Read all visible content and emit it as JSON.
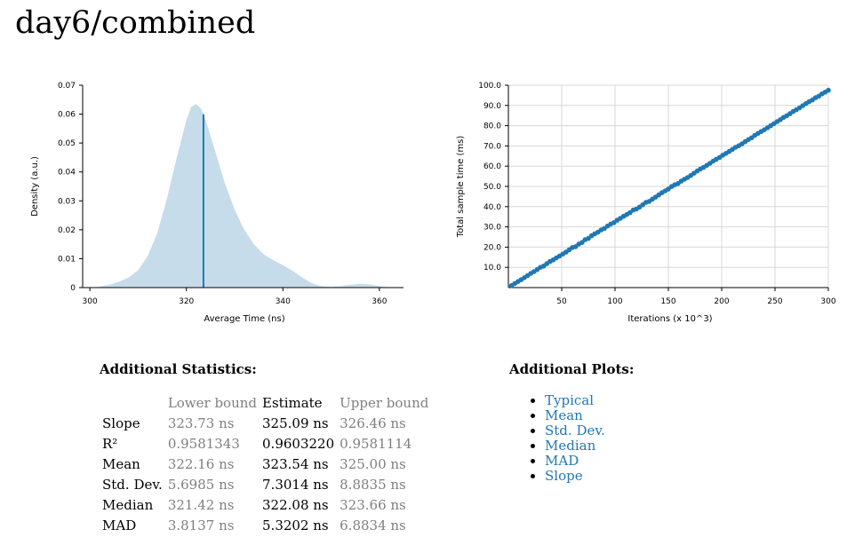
{
  "page": {
    "title": "day6/combined"
  },
  "colors": {
    "link": "#1f78b4",
    "pdf_fill": "#c6dceb",
    "mean_line": "#1f78b4",
    "points": "#1f78b4",
    "muted_text": "#7f7f7f"
  },
  "chart_data": [
    {
      "type": "area",
      "xlabel": "Average Time (ns)",
      "ylabel": "Density (a.u.)",
      "xlim": [
        298.5,
        365
      ],
      "ylim": [
        0,
        0.07
      ],
      "xticks": [
        "300",
        "320",
        "340",
        "360"
      ],
      "yticks": [
        "0",
        "0.01",
        "0.02",
        "0.03",
        "0.04",
        "0.05",
        "0.06",
        "0.07"
      ],
      "x": [
        300,
        302,
        304,
        306,
        308,
        310,
        312,
        314,
        316,
        318,
        320,
        321,
        322,
        323,
        324,
        326,
        328,
        330,
        332,
        334,
        336,
        338,
        340,
        342,
        344,
        346,
        348,
        350,
        352,
        354,
        356,
        358,
        360,
        362
      ],
      "density": [
        0.0,
        0.0003,
        0.001,
        0.002,
        0.0035,
        0.006,
        0.011,
        0.019,
        0.031,
        0.045,
        0.058,
        0.0625,
        0.0635,
        0.062,
        0.058,
        0.047,
        0.036,
        0.027,
        0.02,
        0.015,
        0.0115,
        0.0095,
        0.0078,
        0.0058,
        0.0035,
        0.0015,
        0.0005,
        0.0002,
        0.0005,
        0.001,
        0.0013,
        0.0011,
        0.0005,
        0.0
      ],
      "mean_line": {
        "x": 323.54,
        "y": 0.06
      },
      "grid": false,
      "legend": "none"
    },
    {
      "type": "scatter",
      "xlabel": "Iterations (x 10^3)",
      "ylabel": "Total sample time (ms)",
      "xlim": [
        0,
        300
      ],
      "ylim": [
        0,
        100
      ],
      "xticks": [
        "50",
        "100",
        "150",
        "200",
        "250",
        "300"
      ],
      "yticks": [
        "10.0",
        "20.0",
        "30.0",
        "40.0",
        "50.0",
        "60.0",
        "70.0",
        "80.0",
        "90.0",
        "100.0"
      ],
      "grid": true,
      "legend": "none",
      "regression": {
        "slope_ns": 325.09
      },
      "points": [
        [
          3,
          1.0
        ],
        [
          6,
          2.0
        ],
        [
          9,
          3.0
        ],
        [
          12,
          3.9
        ],
        [
          15,
          4.9
        ],
        [
          18,
          5.9
        ],
        [
          21,
          7.0
        ],
        [
          24,
          7.9
        ],
        [
          27,
          8.9
        ],
        [
          30,
          10.0
        ],
        [
          33,
          10.6
        ],
        [
          36,
          11.8
        ],
        [
          39,
          12.9
        ],
        [
          42,
          13.7
        ],
        [
          45,
          14.7
        ],
        [
          48,
          15.6
        ],
        [
          51,
          16.6
        ],
        [
          54,
          17.5
        ],
        [
          57,
          18.7
        ],
        [
          60,
          19.8
        ],
        [
          63,
          20.2
        ],
        [
          66,
          21.5
        ],
        [
          69,
          22.3
        ],
        [
          72,
          23.7
        ],
        [
          75,
          24.3
        ],
        [
          78,
          25.6
        ],
        [
          81,
          26.6
        ],
        [
          84,
          27.4
        ],
        [
          87,
          28.5
        ],
        [
          90,
          29.2
        ],
        [
          93,
          30.4
        ],
        [
          96,
          31.4
        ],
        [
          99,
          32.1
        ],
        [
          102,
          33.3
        ],
        [
          105,
          34.2
        ],
        [
          108,
          35.2
        ],
        [
          111,
          36.1
        ],
        [
          114,
          37.0
        ],
        [
          117,
          38.3
        ],
        [
          120,
          38.8
        ],
        [
          123,
          39.8
        ],
        [
          126,
          40.9
        ],
        [
          129,
          42.1
        ],
        [
          132,
          42.6
        ],
        [
          135,
          43.7
        ],
        [
          138,
          44.7
        ],
        [
          141,
          45.8
        ],
        [
          144,
          46.9
        ],
        [
          147,
          47.8
        ],
        [
          150,
          48.7
        ],
        [
          153,
          49.9
        ],
        [
          156,
          50.8
        ],
        [
          159,
          51.4
        ],
        [
          162,
          52.6
        ],
        [
          165,
          53.5
        ],
        [
          168,
          54.4
        ],
        [
          171,
          55.4
        ],
        [
          174,
          56.5
        ],
        [
          177,
          57.6
        ],
        [
          180,
          58.6
        ],
        [
          183,
          59.4
        ],
        [
          186,
          60.4
        ],
        [
          189,
          61.4
        ],
        [
          192,
          62.5
        ],
        [
          195,
          63.4
        ],
        [
          198,
          64.3
        ],
        [
          201,
          65.4
        ],
        [
          204,
          66.3
        ],
        [
          207,
          67.3
        ],
        [
          210,
          68.3
        ],
        [
          213,
          69.3
        ],
        [
          216,
          70.1
        ],
        [
          219,
          71.0
        ],
        [
          222,
          72.1
        ],
        [
          225,
          73.1
        ],
        [
          228,
          74.0
        ],
        [
          231,
          75.2
        ],
        [
          234,
          76.2
        ],
        [
          237,
          77.1
        ],
        [
          240,
          78.0
        ],
        [
          243,
          79.0
        ],
        [
          246,
          80.0
        ],
        [
          249,
          81.0
        ],
        [
          252,
          82.0
        ],
        [
          255,
          83.0
        ],
        [
          258,
          84.1
        ],
        [
          261,
          84.9
        ],
        [
          264,
          85.9
        ],
        [
          267,
          87.0
        ],
        [
          270,
          87.9
        ],
        [
          273,
          88.8
        ],
        [
          276,
          89.9
        ],
        [
          279,
          90.9
        ],
        [
          282,
          91.9
        ],
        [
          285,
          92.7
        ],
        [
          288,
          93.8
        ],
        [
          291,
          94.6
        ],
        [
          294,
          95.7
        ],
        [
          297,
          96.6
        ],
        [
          300,
          97.5
        ]
      ]
    }
  ],
  "stats": {
    "title": "Additional Statistics:",
    "headers": {
      "blank": "",
      "lower": "Lower bound",
      "estimate": "Estimate",
      "upper": "Upper bound"
    },
    "rows": [
      {
        "label": "Slope",
        "lower": "323.73 ns",
        "estimate": "325.09 ns",
        "upper": "326.46 ns"
      },
      {
        "label": "R²",
        "lower": "0.9581343",
        "estimate": "0.9603220",
        "upper": "0.9581114"
      },
      {
        "label": "Mean",
        "lower": "322.16 ns",
        "estimate": "323.54 ns",
        "upper": "325.00 ns"
      },
      {
        "label": "Std. Dev.",
        "lower": "5.6985 ns",
        "estimate": "7.3014 ns",
        "upper": "8.8835 ns"
      },
      {
        "label": "Median",
        "lower": "321.42 ns",
        "estimate": "322.08 ns",
        "upper": "323.66 ns"
      },
      {
        "label": "MAD",
        "lower": "3.8137 ns",
        "estimate": "5.3202 ns",
        "upper": "6.8834 ns"
      }
    ]
  },
  "additional_plots": {
    "title": "Additional Plots:",
    "links": [
      "Typical",
      "Mean",
      "Std. Dev.",
      "Median",
      "MAD",
      "Slope"
    ]
  }
}
